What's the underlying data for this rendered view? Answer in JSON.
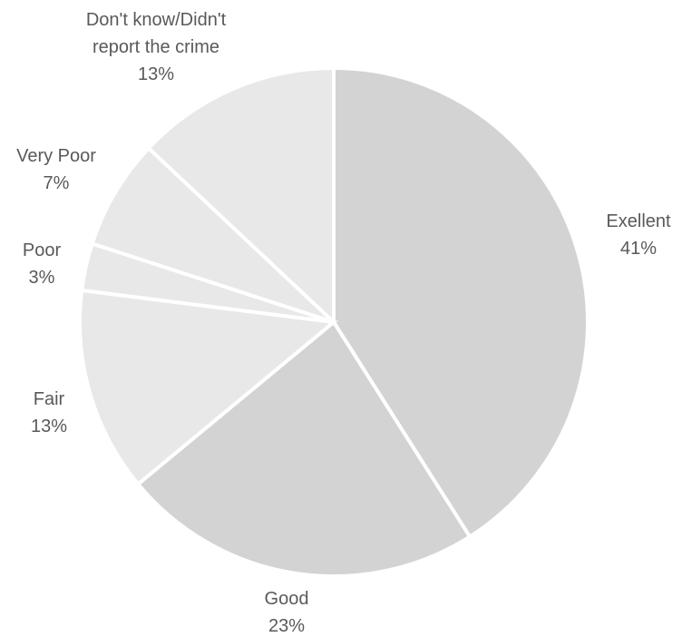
{
  "chart_data": {
    "type": "pie",
    "title": "",
    "start_angle_deg": 0,
    "direction": "clockwise",
    "slices": [
      {
        "label_lines": [
          "Exellent"
        ],
        "percent_label": "41%",
        "value": 41,
        "color": "#d3d3d3"
      },
      {
        "label_lines": [
          "Good"
        ],
        "percent_label": "23%",
        "value": 23,
        "color": "#d3d3d3"
      },
      {
        "label_lines": [
          "Fair"
        ],
        "percent_label": "13%",
        "value": 13,
        "color": "#e8e8e8"
      },
      {
        "label_lines": [
          "Poor"
        ],
        "percent_label": "3%",
        "value": 3,
        "color": "#e8e8e8"
      },
      {
        "label_lines": [
          "Very Poor"
        ],
        "percent_label": "7%",
        "value": 7,
        "color": "#e8e8e8"
      },
      {
        "label_lines": [
          "Don't know/Didn't",
          "report the crime"
        ],
        "percent_label": "13%",
        "value": 13,
        "color": "#e8e8e8"
      }
    ],
    "legend": "none",
    "label_color": "#595959"
  }
}
